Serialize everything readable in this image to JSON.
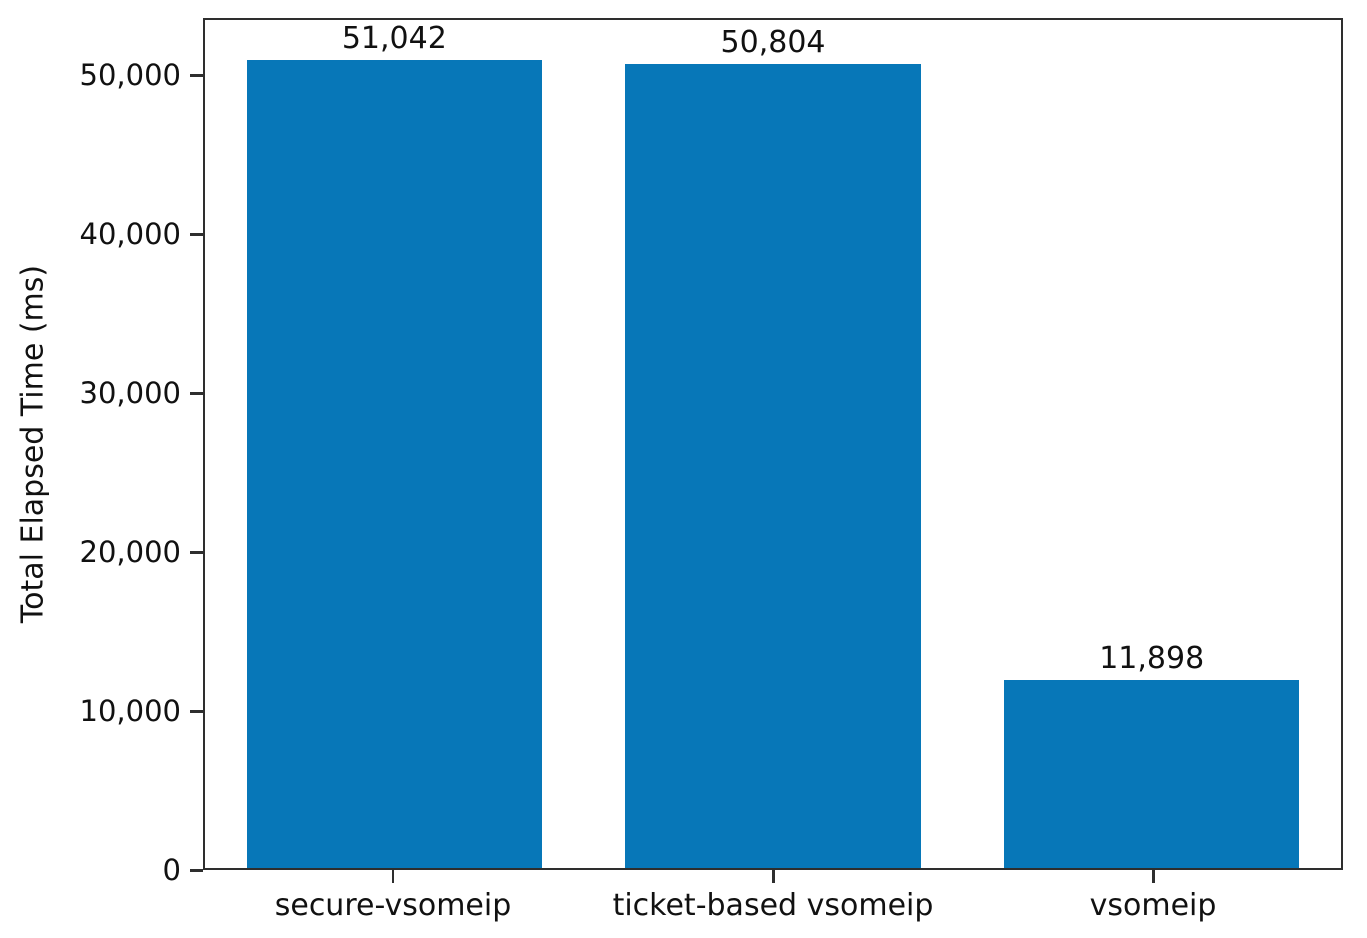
{
  "chart_data": {
    "type": "bar",
    "title": "",
    "categories": [
      "secure-vsomeip",
      "ticket-based vsomeip",
      "vsomeip"
    ],
    "values": [
      51042,
      50804,
      11898
    ],
    "value_labels": [
      "51,042",
      "50,804",
      "11,898"
    ],
    "xlabel": "",
    "ylabel": "Total Elapsed Time (ms)",
    "ylim": [
      0,
      53600
    ],
    "yticks": [
      {
        "value": 0,
        "label": "0"
      },
      {
        "value": 10000,
        "label": "10,000"
      },
      {
        "value": 20000,
        "label": "20,000"
      },
      {
        "value": 30000,
        "label": "30,000"
      },
      {
        "value": 40000,
        "label": "40,000"
      },
      {
        "value": 50000,
        "label": "50,000"
      }
    ],
    "bar_color": "#0777b8",
    "axis_color": "#2e2e2e",
    "grid": false,
    "legend_position": "none"
  }
}
